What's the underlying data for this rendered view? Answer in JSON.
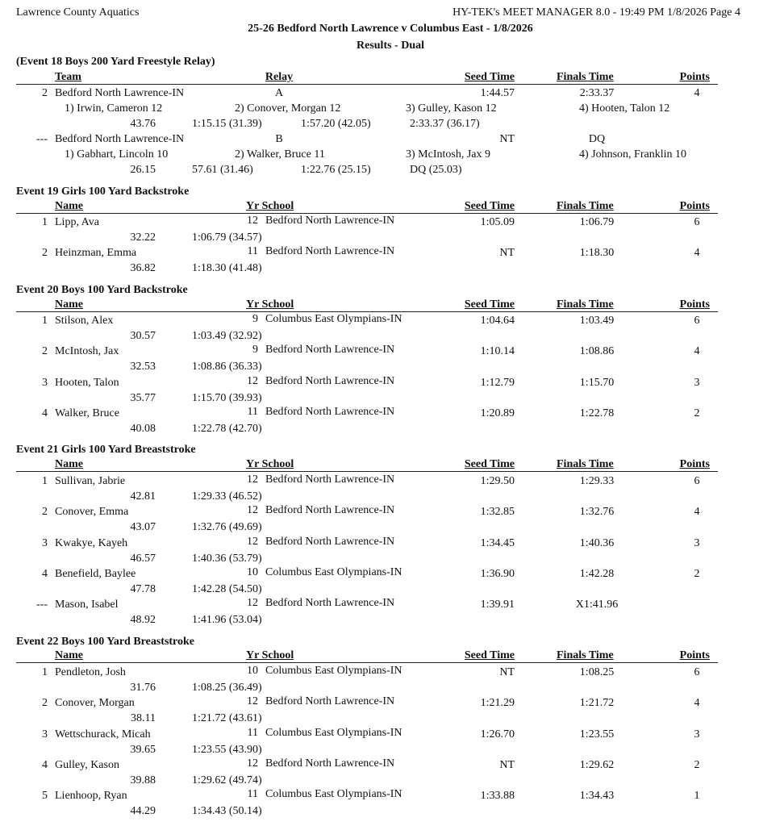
{
  "header": {
    "org": "Lawrence County Aquatics",
    "software": "HY-TEK's MEET MANAGER 8.0 - 19:49 PM  1/8/2026  Page 4",
    "meet_title": "25-26 Bedford North Lawrence v Columbus East - 1/8/2026",
    "subtitle": "Results - Dual"
  },
  "relay_event": {
    "title": "(Event 18  Boys 200 Yard Freestyle Relay)",
    "columns": [
      "Team",
      "Relay",
      "Seed Time",
      "Finals Time",
      "Points"
    ],
    "entries": [
      {
        "place": "2",
        "team": "Bedford North Lawrence-IN",
        "relay": "A",
        "seed": "1:44.57",
        "finals": "2:33.37",
        "points": "4",
        "swimmers": [
          "1) Irwin, Cameron 12",
          "2) Conover, Morgan 12",
          "3) Gulley, Kason 12",
          "4) Hooten, Talon 12"
        ],
        "splits": [
          "43.76",
          "1:15.15 (31.39)",
          "1:57.20 (42.05)",
          "2:33.37 (36.17)"
        ]
      },
      {
        "place": "---",
        "team": "Bedford North Lawrence-IN",
        "relay": "B",
        "seed": "NT",
        "finals": "DQ",
        "points": "",
        "swimmers": [
          "1) Gabhart, Lincoln 10",
          "2) Walker, Bruce 11",
          "3) McIntosh, Jax 9",
          "4) Johnson, Franklin 10"
        ],
        "splits": [
          "26.15",
          "57.61 (31.46)",
          "1:22.76 (25.15)",
          "DQ (25.03)"
        ]
      }
    ]
  },
  "events": [
    {
      "title": "Event 19  Girls 100 Yard Backstroke",
      "columns": [
        "Name",
        "Yr  School",
        "Seed Time",
        "Finals Time",
        "Points"
      ],
      "entries": [
        {
          "place": "1",
          "name": "Lipp, Ava",
          "yr": "12",
          "school": "Bedford North Lawrence-IN",
          "seed": "1:05.09",
          "finals": "1:06.79",
          "points": "6",
          "split1": "32.22",
          "split2": "1:06.79 (34.57)"
        },
        {
          "place": "2",
          "name": "Heinzman, Emma",
          "yr": "11",
          "school": "Bedford North Lawrence-IN",
          "seed": "NT",
          "finals": "1:18.30",
          "points": "4",
          "split1": "36.82",
          "split2": "1:18.30 (41.48)"
        }
      ]
    },
    {
      "title": "Event 20  Boys 100 Yard Backstroke",
      "columns": [
        "Name",
        "Yr  School",
        "Seed Time",
        "Finals Time",
        "Points"
      ],
      "entries": [
        {
          "place": "1",
          "name": "Stilson, Alex",
          "yr": "9",
          "school": "Columbus East Olympians-IN",
          "seed": "1:04.64",
          "finals": "1:03.49",
          "points": "6",
          "split1": "30.57",
          "split2": "1:03.49 (32.92)"
        },
        {
          "place": "2",
          "name": "McIntosh, Jax",
          "yr": "9",
          "school": "Bedford North Lawrence-IN",
          "seed": "1:10.14",
          "finals": "1:08.86",
          "points": "4",
          "split1": "32.53",
          "split2": "1:08.86 (36.33)"
        },
        {
          "place": "3",
          "name": "Hooten, Talon",
          "yr": "12",
          "school": "Bedford North Lawrence-IN",
          "seed": "1:12.79",
          "finals": "1:15.70",
          "points": "3",
          "split1": "35.77",
          "split2": "1:15.70 (39.93)"
        },
        {
          "place": "4",
          "name": "Walker, Bruce",
          "yr": "11",
          "school": "Bedford North Lawrence-IN",
          "seed": "1:20.89",
          "finals": "1:22.78",
          "points": "2",
          "split1": "40.08",
          "split2": "1:22.78 (42.70)"
        }
      ]
    },
    {
      "title": "Event 21  Girls 100 Yard Breaststroke",
      "columns": [
        "Name",
        "Yr  School",
        "Seed Time",
        "Finals Time",
        "Points"
      ],
      "entries": [
        {
          "place": "1",
          "name": "Sullivan, Jabrie",
          "yr": "12",
          "school": "Bedford North Lawrence-IN",
          "seed": "1:29.50",
          "finals": "1:29.33",
          "points": "6",
          "split1": "42.81",
          "split2": "1:29.33 (46.52)"
        },
        {
          "place": "2",
          "name": "Conover, Emma",
          "yr": "12",
          "school": "Bedford North Lawrence-IN",
          "seed": "1:32.85",
          "finals": "1:32.76",
          "points": "4",
          "split1": "43.07",
          "split2": "1:32.76 (49.69)"
        },
        {
          "place": "3",
          "name": "Kwakye, Kayeh",
          "yr": "12",
          "school": "Bedford North Lawrence-IN",
          "seed": "1:34.45",
          "finals": "1:40.36",
          "points": "3",
          "split1": "46.57",
          "split2": "1:40.36 (53.79)"
        },
        {
          "place": "4",
          "name": "Benefield, Baylee",
          "yr": "10",
          "school": "Columbus East Olympians-IN",
          "seed": "1:36.90",
          "finals": "1:42.28",
          "points": "2",
          "split1": "47.78",
          "split2": "1:42.28 (54.50)"
        },
        {
          "place": "---",
          "name": "Mason, Isabel",
          "yr": "12",
          "school": "Bedford North Lawrence-IN",
          "seed": "1:39.91",
          "finals": "X1:41.96",
          "points": "",
          "split1": "48.92",
          "split2": "1:41.96 (53.04)"
        }
      ]
    },
    {
      "title": "Event 22  Boys 100 Yard Breaststroke",
      "columns": [
        "Name",
        "Yr  School",
        "Seed Time",
        "Finals Time",
        "Points"
      ],
      "entries": [
        {
          "place": "1",
          "name": "Pendleton, Josh",
          "yr": "10",
          "school": "Columbus East Olympians-IN",
          "seed": "NT",
          "finals": "1:08.25",
          "points": "6",
          "split1": "31.76",
          "split2": "1:08.25 (36.49)"
        },
        {
          "place": "2",
          "name": "Conover, Morgan",
          "yr": "12",
          "school": "Bedford North Lawrence-IN",
          "seed": "1:21.29",
          "finals": "1:21.72",
          "points": "4",
          "split1": "38.11",
          "split2": "1:21.72 (43.61)"
        },
        {
          "place": "3",
          "name": "Wettschurack, Micah",
          "yr": "11",
          "school": "Columbus East Olympians-IN",
          "seed": "1:26.70",
          "finals": "1:23.55",
          "points": "3",
          "split1": "39.65",
          "split2": "1:23.55 (43.90)"
        },
        {
          "place": "4",
          "name": "Gulley, Kason",
          "yr": "12",
          "school": "Bedford North Lawrence-IN",
          "seed": "NT",
          "finals": "1:29.62",
          "points": "2",
          "split1": "39.88",
          "split2": "1:29.62 (49.74)"
        },
        {
          "place": "5",
          "name": "Lienhoop, Ryan",
          "yr": "11",
          "school": "Columbus East Olympians-IN",
          "seed": "1:33.88",
          "finals": "1:34.43",
          "points": "1",
          "split1": "44.29",
          "split2": "1:34.43 (50.14)"
        }
      ]
    }
  ]
}
